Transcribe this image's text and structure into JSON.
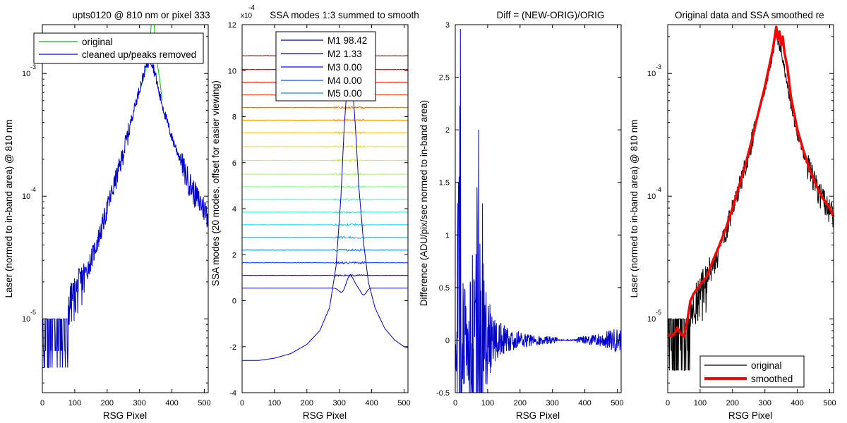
{
  "chart_data": [
    {
      "type": "line",
      "title": "upts0120 @ 810 nm or pixel 333",
      "xlabel": "RSG Pixel",
      "ylabel": "Laser (normed to in-band area) @ 810 nm",
      "yscale": "log",
      "xlim": [
        0,
        512
      ],
      "ylim": [
        2.5e-06,
        0.0025
      ],
      "x_ticks": [
        "0",
        "100",
        "200",
        "300",
        "400",
        "500"
      ],
      "y_ticks": [
        {
          "mantissa": "10",
          "exp": "-5",
          "value": 1e-05
        },
        {
          "mantissa": "10",
          "exp": "-4",
          "value": 0.0001
        },
        {
          "mantissa": "10",
          "exp": "-3",
          "value": 0.001
        }
      ],
      "legend": {
        "position": "top",
        "entries": [
          {
            "label": "original",
            "color": "#00c000"
          },
          {
            "label": "cleaned up/peaks removed",
            "color": "#0000d0"
          }
        ]
      },
      "series": [
        {
          "name": "original",
          "color": "#00c000",
          "x": [
            300,
            320,
            330,
            336,
            340,
            345,
            350,
            355,
            362,
            370
          ],
          "y": [
            0.0007,
            0.0011,
            0.0015,
            0.0025,
            0.0025,
            0.0025,
            0.0016,
            0.0012,
            0.0009,
            0.0006
          ]
        },
        {
          "name": "cleaned up/peaks removed",
          "color": "#0000d0",
          "noisy": true,
          "x": [
            0,
            20,
            40,
            60,
            80,
            100,
            120,
            140,
            160,
            180,
            200,
            220,
            240,
            260,
            280,
            300,
            320,
            333,
            340,
            350,
            360,
            380,
            400,
            420,
            440,
            460,
            480,
            500,
            512
          ],
          "y": [
            1e-05,
            1e-05,
            1.1e-05,
            1.2e-05,
            1.3e-05,
            1.6e-05,
            2e-05,
            2.6e-05,
            3.6e-05,
            5.2e-05,
            8e-05,
            0.00012,
            0.00018,
            0.00029,
            0.00048,
            0.00075,
            0.00115,
            0.0013,
            0.0012,
            0.00095,
            0.0007,
            0.00045,
            0.0003,
            0.00022,
            0.00016,
            0.00012,
            9.5e-05,
            8e-05,
            7e-05
          ]
        }
      ]
    },
    {
      "type": "line",
      "title": "SSA modes 1:3 summed to smooth",
      "xlabel": "RSG Pixel",
      "ylabel": "SSA modes (20 modes, offset for easier viewing)",
      "axis_multiplier": {
        "base": "x10",
        "exp": "-4"
      },
      "xlim": [
        0,
        512
      ],
      "ylim": [
        -4,
        12
      ],
      "x_ticks": [
        "0",
        "100",
        "200",
        "300",
        "400",
        "500"
      ],
      "y_ticks": [
        "-4",
        "-2",
        "0",
        "2",
        "4",
        "6",
        "8",
        "10",
        "12"
      ],
      "legend": {
        "position": "top-center",
        "entries": [
          {
            "label": "M1 98.42",
            "color": "#00008f"
          },
          {
            "label": "M2 1.33",
            "color": "#0000d0"
          },
          {
            "label": "M3 0.00",
            "color": "#0010ff"
          },
          {
            "label": "M4 0.00",
            "color": "#0050ff"
          },
          {
            "label": "M5 0.00",
            "color": "#0090ff"
          }
        ]
      },
      "mode_offsets": [
        0.55,
        1.1,
        1.65,
        2.2,
        2.75,
        3.3,
        3.85,
        4.4,
        4.95,
        5.5,
        6.1,
        6.7,
        7.3,
        7.85,
        8.4,
        8.95,
        9.5,
        10.05,
        10.65
      ],
      "mode_colors": [
        "#0000c8",
        "#0000ff",
        "#0030ff",
        "#0070ff",
        "#00a8ff",
        "#00d8f0",
        "#20f0d0",
        "#40f8a8",
        "#70ff80",
        "#a0ff50",
        "#c8f030",
        "#e8e010",
        "#ffc000",
        "#ff9000",
        "#ff6000",
        "#f03000",
        "#e01000",
        "#c80000",
        "#a00000"
      ],
      "series": [
        {
          "name": "M1",
          "color": "#0000c8",
          "x": [
            0,
            50,
            100,
            150,
            200,
            240,
            270,
            290,
            305,
            315,
            325,
            333,
            340,
            350,
            360,
            375,
            390,
            410,
            440,
            470,
            500,
            512
          ],
          "y": [
            -2.6,
            -2.6,
            -2.5,
            -2.3,
            -1.9,
            -1.3,
            -0.3,
            1.5,
            4.5,
            7.5,
            9.6,
            10.0,
            9.6,
            7.5,
            5.0,
            2.5,
            0.8,
            -0.3,
            -1.2,
            -1.7,
            -2.0,
            -2.05
          ]
        }
      ]
    },
    {
      "type": "line",
      "title": "Diff = (NEW-ORIG)/ORIG",
      "xlabel": "RSG Pixel",
      "ylabel": "Difference (ADU/pix/sec normed to in-band area)",
      "xlim": [
        0,
        512
      ],
      "ylim": [
        -0.5,
        3
      ],
      "x_ticks": [
        "0",
        "100",
        "200",
        "300",
        "400",
        "500"
      ],
      "y_ticks": [
        "-0.5",
        "0",
        "0.5",
        "1",
        "1.5",
        "2",
        "2.5",
        "3"
      ],
      "series": [
        {
          "name": "",
          "color": "#0000d0",
          "noisy": true,
          "x": [
            2,
            8,
            12,
            16,
            22,
            30,
            40,
            55,
            70,
            72,
            80,
            90,
            110,
            130,
            160,
            200,
            250,
            310,
            380,
            420,
            460,
            500,
            512
          ],
          "y": [
            0.5,
            1.5,
            2.0,
            2.96,
            0.8,
            0.5,
            0.4,
            0.9,
            2.0,
            1.0,
            1.0,
            0.6,
            0.3,
            0.2,
            0.12,
            0.08,
            0.05,
            0.03,
            0.03,
            0.05,
            0.08,
            0.12,
            0.1
          ]
        }
      ]
    },
    {
      "type": "line",
      "title": "Original data and SSA smoothed re",
      "xlabel": "RSG Pixel",
      "ylabel": "Laser (normed to in-band area) @ 810 nm",
      "yscale": "log",
      "xlim": [
        0,
        512
      ],
      "ylim": [
        2.5e-06,
        0.0025
      ],
      "x_ticks": [
        "0",
        "100",
        "200",
        "300",
        "400",
        "500"
      ],
      "y_ticks": [
        {
          "mantissa": "10",
          "exp": "-5",
          "value": 1e-05
        },
        {
          "mantissa": "10",
          "exp": "-4",
          "value": 0.0001
        },
        {
          "mantissa": "10",
          "exp": "-3",
          "value": 0.001
        }
      ],
      "legend": {
        "position": "bottom",
        "entries": [
          {
            "label": "original",
            "color": "#000000"
          },
          {
            "label": "smoothed",
            "color": "#ff0000"
          }
        ]
      },
      "series": [
        {
          "name": "original",
          "color": "#000000",
          "noisy": true,
          "x": [
            0,
            20,
            40,
            60,
            80,
            100,
            120,
            140,
            160,
            180,
            200,
            220,
            240,
            260,
            280,
            300,
            320,
            335,
            340,
            350,
            360,
            380,
            400,
            420,
            440,
            460,
            480,
            500,
            512
          ],
          "y": [
            1e-05,
            1e-05,
            1.1e-05,
            1.2e-05,
            1.3e-05,
            1.6e-05,
            2e-05,
            2.6e-05,
            3.6e-05,
            5.2e-05,
            8e-05,
            0.00012,
            0.00018,
            0.00029,
            0.00048,
            0.00075,
            0.0012,
            0.0022,
            0.0018,
            0.0016,
            0.0011,
            0.00055,
            0.00032,
            0.00022,
            0.00016,
            0.00012,
            9.5e-05,
            8e-05,
            7e-05
          ]
        },
        {
          "name": "smoothed",
          "color": "#ff0000",
          "x": [
            0,
            10,
            20,
            30,
            40,
            50,
            60,
            70,
            80,
            100,
            120,
            140,
            160,
            180,
            200,
            220,
            240,
            260,
            280,
            300,
            315,
            325,
            335,
            340,
            345,
            350,
            355,
            360,
            370,
            380,
            400,
            420,
            440,
            460,
            480,
            500,
            512
          ],
          "y": [
            7.5e-06,
            7.2e-06,
            7.5e-06,
            8.5e-06,
            7.5e-06,
            7.2e-06,
            9.5e-06,
            1.4e-05,
            1.6e-05,
            1.9e-05,
            2.2e-05,
            3e-05,
            4e-05,
            5.5e-05,
            8e-05,
            0.00012,
            0.00018,
            0.00029,
            0.00048,
            0.00078,
            0.0012,
            0.0016,
            0.0024,
            0.0019,
            0.0022,
            0.0017,
            0.002,
            0.0015,
            0.0011,
            0.00065,
            0.00035,
            0.00023,
            0.00016,
            0.00012,
            9.5e-05,
            8e-05,
            6.8e-05
          ]
        }
      ]
    }
  ]
}
